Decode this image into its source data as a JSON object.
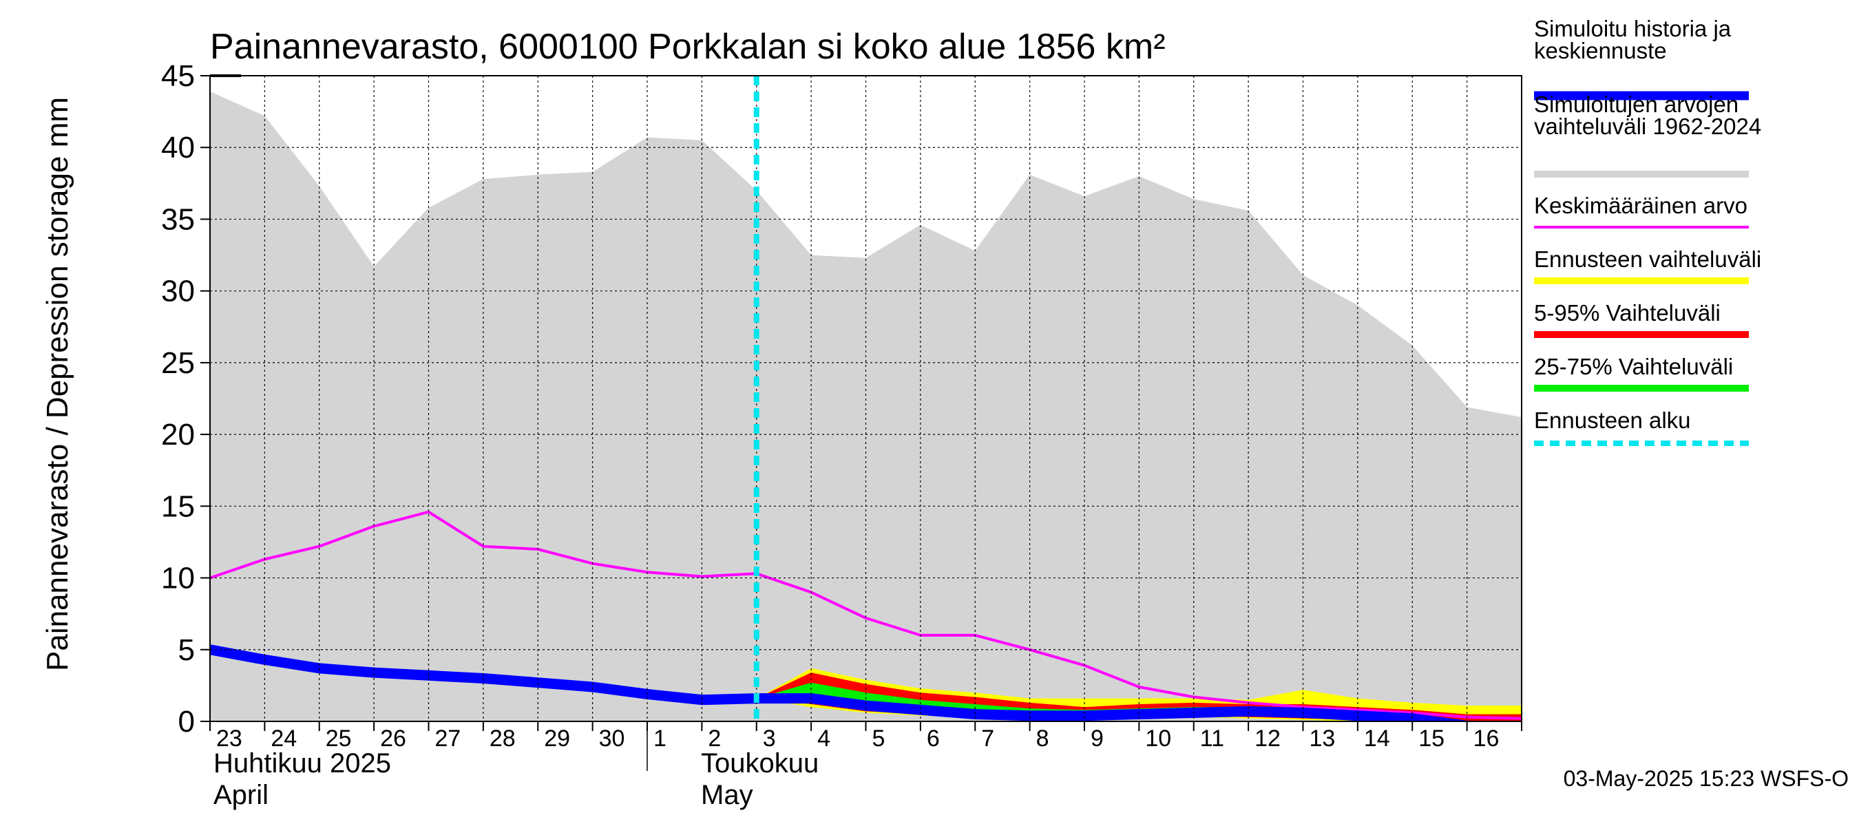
{
  "chart_data": {
    "type": "area",
    "title": "Painannevarasto, 6000100 Porkkalan si koko alue 1856 km²",
    "ylabel": "Painannevarasto / Depression storage    mm",
    "ylim": [
      0,
      45
    ],
    "yticks": [
      "0",
      "5",
      "10",
      "15",
      "20",
      "25",
      "30",
      "35",
      "40",
      "45"
    ],
    "day_labels": [
      "23",
      "24",
      "25",
      "26",
      "27",
      "28",
      "29",
      "30",
      "1",
      "2",
      "3",
      "4",
      "5",
      "6",
      "7",
      "8",
      "9",
      "10",
      "11",
      "12",
      "13",
      "14",
      "15",
      "16"
    ],
    "month_labels": [
      {
        "line1": "Huhtikuu  2025",
        "line2": "April"
      },
      {
        "line1": "Toukokuu",
        "line2": "May"
      }
    ],
    "forecast_start_day": 10,
    "grid": true,
    "legend_position": "right",
    "x_days": [
      0,
      1,
      2,
      3,
      4,
      5,
      6,
      7,
      8,
      9,
      10,
      11,
      12,
      13,
      14,
      15,
      16,
      17,
      18,
      19,
      20,
      21,
      22,
      23,
      24
    ],
    "sim_range_upper": [
      43.9,
      42.2,
      37.3,
      31.7,
      35.8,
      37.8,
      38.1,
      38.3,
      40.7,
      40.5,
      37.0,
      32.5,
      32.3,
      34.6,
      32.8,
      38.1,
      36.6,
      38.0,
      36.4,
      35.6,
      31.1,
      29.0,
      26.2,
      21.9,
      21.2
    ],
    "mean": [
      10.0,
      11.3,
      12.2,
      13.6,
      14.6,
      12.2,
      12.0,
      11.0,
      10.4,
      10.1,
      10.3,
      9.0,
      7.2,
      6.0,
      6.0,
      5.0,
      3.9,
      2.4,
      1.7,
      1.3,
      1.0,
      0.8,
      0.6,
      0.3,
      0.2
    ],
    "history_forecast": [
      5.0,
      4.3,
      3.7,
      3.4,
      3.2,
      3.0,
      2.7,
      2.4,
      1.9,
      1.5,
      1.6,
      1.6,
      1.1,
      0.8,
      0.5,
      0.4,
      0.4,
      0.5,
      0.6,
      0.7,
      0.6,
      0.4,
      0.2,
      -0.3,
      -0.4
    ],
    "forecast_range": {
      "lower": [
        null,
        null,
        null,
        null,
        null,
        null,
        null,
        null,
        null,
        null,
        1.6,
        1.0,
        0.6,
        0.4,
        0.3,
        0.2,
        0.2,
        0.3,
        0.3,
        0.2,
        0.1,
        0.0,
        -0.2,
        -0.6,
        -0.7
      ],
      "upper": [
        null,
        null,
        null,
        null,
        null,
        null,
        null,
        null,
        null,
        null,
        1.6,
        3.7,
        2.9,
        2.3,
        2.0,
        1.6,
        1.6,
        1.6,
        1.6,
        1.5,
        2.2,
        1.6,
        1.3,
        1.1,
        1.1
      ]
    },
    "p5_95": {
      "lower": [
        null,
        null,
        null,
        null,
        null,
        null,
        null,
        null,
        null,
        null,
        1.6,
        1.2,
        0.7,
        0.5,
        0.4,
        0.3,
        0.3,
        0.4,
        0.4,
        0.3,
        0.2,
        0.1,
        -0.1,
        -0.5,
        -0.6
      ],
      "upper": [
        null,
        null,
        null,
        null,
        null,
        null,
        null,
        null,
        null,
        null,
        1.6,
        3.4,
        2.6,
        2.0,
        1.7,
        1.3,
        1.0,
        1.2,
        1.3,
        1.2,
        1.2,
        1.0,
        0.8,
        0.5,
        0.5
      ]
    },
    "p25_75": {
      "lower": [
        null,
        null,
        null,
        null,
        null,
        null,
        null,
        null,
        null,
        null,
        1.6,
        1.4,
        0.9,
        0.6,
        0.4,
        0.3,
        0.3,
        0.4,
        0.5,
        0.4,
        0.3,
        0.2,
        0.0,
        -0.4,
        -0.5
      ],
      "upper": [
        null,
        null,
        null,
        null,
        null,
        null,
        null,
        null,
        null,
        null,
        1.6,
        2.7,
        2.0,
        1.5,
        1.2,
        0.9,
        0.8,
        0.9,
        1.0,
        1.0,
        0.9,
        0.7,
        0.4,
        0.0,
        -0.1
      ]
    },
    "legend": [
      {
        "label1": "Simuloitu historia ja",
        "label2": "keskiennuste",
        "color": "#0000ff",
        "style": "thick"
      },
      {
        "label1": "Simuloitujen arvojen",
        "label2": "vaihteluväli 1962-2024",
        "color": "#d4d4d4",
        "style": "band"
      },
      {
        "label1": "Keskimääräinen arvo",
        "label2": "",
        "color": "#ff00ff",
        "style": "line"
      },
      {
        "label1": "Ennusteen vaihteluväli",
        "label2": "",
        "color": "#ffff00",
        "style": "band"
      },
      {
        "label1": "5-95% Vaihteluväli",
        "label2": "",
        "color": "#ff0000",
        "style": "band"
      },
      {
        "label1": "25-75% Vaihteluväli",
        "label2": "",
        "color": "#00ee00",
        "style": "band"
      },
      {
        "label1": "Ennusteen alku",
        "label2": "",
        "color": "#00e5ee",
        "style": "dashed"
      }
    ],
    "timestamp": "03-May-2025 15:23 WSFS-O"
  },
  "colors": {
    "gray_band": "#d4d4d4",
    "history": "#0000ff",
    "mean": "#ff00ff",
    "forecast_range": "#ffff00",
    "p5_95": "#ff0000",
    "p25_75": "#00ee00",
    "forecast_start": "#00e5ee"
  }
}
